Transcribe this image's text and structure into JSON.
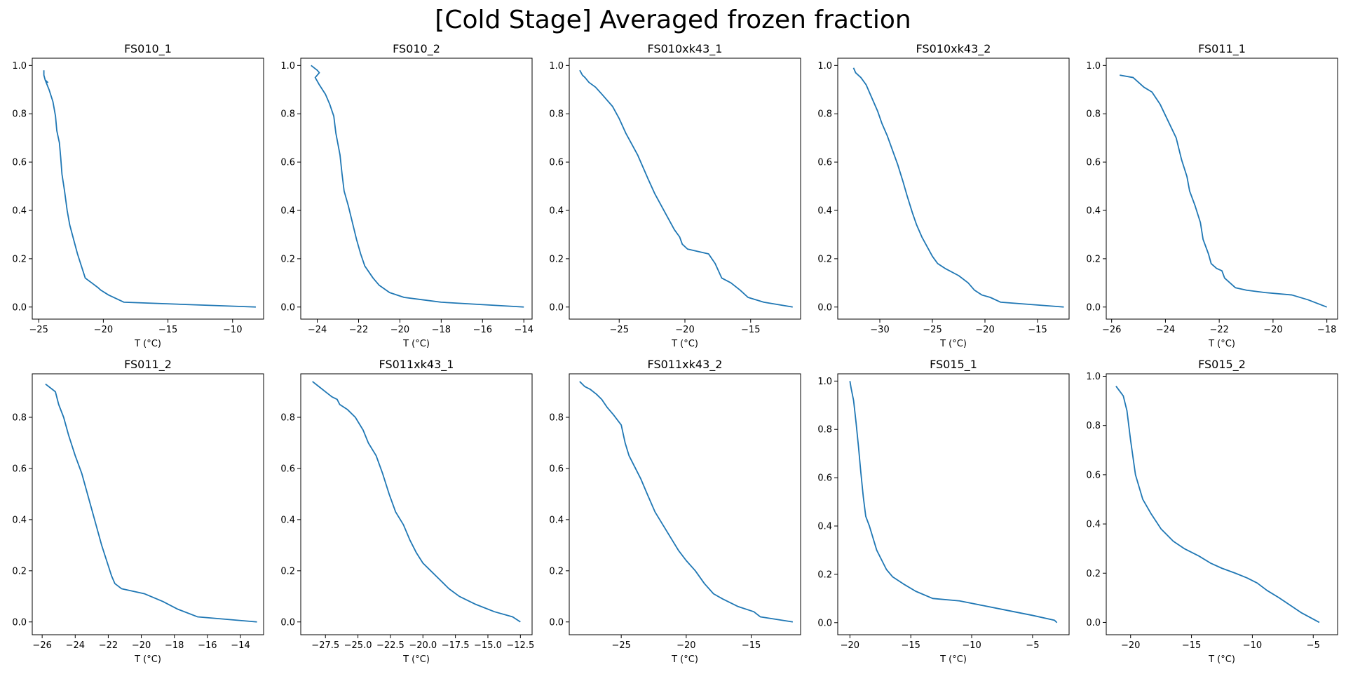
{
  "title": "[Cold Stage] Averaged frozen fraction",
  "colors": {
    "line": "#1f77b4",
    "axes": "#000000",
    "text": "#000000"
  },
  "chart_data": [
    {
      "type": "line",
      "title": "FS010_1",
      "xlabel": "T (°C)",
      "ylabel": "",
      "xlim": [
        -25.5,
        -7.6
      ],
      "ylim": [
        -0.05,
        1.03
      ],
      "xticks": [
        -25,
        -20,
        -15,
        -10
      ],
      "yticks": [
        0.0,
        0.2,
        0.4,
        0.6,
        0.8,
        1.0
      ],
      "x": [
        -24.6,
        -24.6,
        -24.5,
        -24.3,
        -24.5,
        -24.2,
        -23.9,
        -23.7,
        -23.6,
        -23.4,
        -23.3,
        -23.2,
        -23.0,
        -22.8,
        -22.6,
        -22.3,
        -22.0,
        -21.7,
        -21.4,
        -20.9,
        -20.4,
        -20.2,
        -19.6,
        -18.4,
        -8.2
      ],
      "y": [
        0.98,
        0.96,
        0.94,
        0.93,
        0.94,
        0.9,
        0.85,
        0.79,
        0.73,
        0.68,
        0.62,
        0.55,
        0.48,
        0.4,
        0.34,
        0.28,
        0.22,
        0.17,
        0.12,
        0.1,
        0.08,
        0.07,
        0.05,
        0.02,
        0.0
      ]
    },
    {
      "type": "line",
      "title": "FS010_2",
      "xlabel": "T (°C)",
      "ylabel": "",
      "xlim": [
        -24.8,
        -13.6
      ],
      "ylim": [
        -0.05,
        1.03
      ],
      "xticks": [
        -24,
        -22,
        -20,
        -18,
        -16,
        -14
      ],
      "yticks": [
        0.0,
        0.2,
        0.4,
        0.6,
        0.8,
        1.0
      ],
      "x": [
        -24.3,
        -24.0,
        -23.9,
        -24.1,
        -23.9,
        -23.6,
        -23.4,
        -23.2,
        -23.1,
        -22.9,
        -22.8,
        -22.7,
        -22.5,
        -22.3,
        -22.1,
        -21.9,
        -21.7,
        -21.3,
        -21.0,
        -20.5,
        -19.8,
        -18.9,
        -18.0,
        -14.0
      ],
      "y": [
        1.0,
        0.98,
        0.97,
        0.95,
        0.92,
        0.88,
        0.84,
        0.79,
        0.72,
        0.63,
        0.55,
        0.48,
        0.42,
        0.35,
        0.28,
        0.22,
        0.17,
        0.12,
        0.09,
        0.06,
        0.04,
        0.03,
        0.02,
        0.0
      ]
    },
    {
      "type": "line",
      "title": "FS010xk43_1",
      "xlabel": "T (°C)",
      "ylabel": "",
      "xlim": [
        -28.8,
        -11.2
      ],
      "ylim": [
        -0.05,
        1.03
      ],
      "xticks": [
        -25,
        -20,
        -15
      ],
      "yticks": [
        0.0,
        0.2,
        0.4,
        0.6,
        0.8,
        1.0
      ],
      "x": [
        -28.0,
        -27.8,
        -27.6,
        -27.3,
        -26.8,
        -26.3,
        -25.5,
        -25.0,
        -24.5,
        -24.1,
        -23.6,
        -23.2,
        -22.8,
        -22.3,
        -21.9,
        -21.4,
        -21.0,
        -20.8,
        -20.4,
        -20.2,
        -19.8,
        -18.2,
        -17.7,
        -17.2,
        -16.5,
        -15.8,
        -15.2,
        -14.0,
        -11.8
      ],
      "y": [
        0.98,
        0.96,
        0.95,
        0.93,
        0.91,
        0.88,
        0.83,
        0.78,
        0.72,
        0.68,
        0.63,
        0.58,
        0.53,
        0.47,
        0.43,
        0.38,
        0.34,
        0.32,
        0.29,
        0.26,
        0.24,
        0.22,
        0.18,
        0.12,
        0.1,
        0.07,
        0.04,
        0.02,
        0.0
      ]
    },
    {
      "type": "line",
      "title": "FS010xk43_2",
      "xlabel": "T (°C)",
      "ylabel": "",
      "xlim": [
        -34.0,
        -12.0
      ],
      "ylim": [
        -0.05,
        1.03
      ],
      "xticks": [
        -30,
        -25,
        -20,
        -15
      ],
      "yticks": [
        0.0,
        0.2,
        0.4,
        0.6,
        0.8,
        1.0
      ],
      "x": [
        -32.5,
        -32.3,
        -31.8,
        -31.3,
        -31.0,
        -30.6,
        -30.2,
        -29.8,
        -29.3,
        -28.8,
        -28.3,
        -27.8,
        -27.4,
        -26.9,
        -26.5,
        -26.0,
        -25.5,
        -25.0,
        -24.5,
        -23.8,
        -22.5,
        -21.6,
        -21.0,
        -20.3,
        -19.5,
        -18.5,
        -12.5
      ],
      "y": [
        0.99,
        0.97,
        0.95,
        0.92,
        0.89,
        0.85,
        0.81,
        0.76,
        0.71,
        0.65,
        0.59,
        0.52,
        0.46,
        0.39,
        0.34,
        0.29,
        0.25,
        0.21,
        0.18,
        0.16,
        0.13,
        0.1,
        0.07,
        0.05,
        0.04,
        0.02,
        0.0
      ]
    },
    {
      "type": "line",
      "title": "FS011_1",
      "xlabel": "T (°C)",
      "ylabel": "",
      "xlim": [
        -26.2,
        -17.6
      ],
      "ylim": [
        -0.05,
        1.03
      ],
      "xticks": [
        -26,
        -24,
        -22,
        -20,
        -18
      ],
      "yticks": [
        0.0,
        0.2,
        0.4,
        0.6,
        0.8,
        1.0
      ],
      "x": [
        -25.7,
        -25.2,
        -25.0,
        -24.8,
        -24.5,
        -24.2,
        -23.9,
        -23.6,
        -23.4,
        -23.2,
        -23.1,
        -22.9,
        -22.7,
        -22.6,
        -22.4,
        -22.3,
        -22.1,
        -21.9,
        -21.8,
        -21.6,
        -21.4,
        -21.0,
        -20.3,
        -19.3,
        -18.7,
        -18.0
      ],
      "y": [
        0.96,
        0.95,
        0.93,
        0.91,
        0.89,
        0.84,
        0.77,
        0.7,
        0.61,
        0.54,
        0.48,
        0.42,
        0.35,
        0.28,
        0.22,
        0.18,
        0.16,
        0.15,
        0.12,
        0.1,
        0.08,
        0.07,
        0.06,
        0.05,
        0.03,
        0.0
      ]
    },
    {
      "type": "line",
      "title": "FS011_2",
      "xlabel": "T (°C)",
      "ylabel": "",
      "xlim": [
        -26.6,
        -12.6
      ],
      "ylim": [
        -0.05,
        0.97
      ],
      "xticks": [
        -26,
        -24,
        -22,
        -20,
        -18,
        -16,
        -14
      ],
      "yticks": [
        0.0,
        0.2,
        0.4,
        0.6,
        0.8
      ],
      "x": [
        -25.8,
        -25.4,
        -25.2,
        -25.0,
        -24.7,
        -24.4,
        -24.0,
        -23.6,
        -23.3,
        -23.0,
        -22.7,
        -22.4,
        -22.1,
        -21.8,
        -21.6,
        -21.2,
        -20.5,
        -19.8,
        -18.7,
        -17.8,
        -16.6,
        -13.0
      ],
      "y": [
        0.93,
        0.91,
        0.9,
        0.85,
        0.8,
        0.73,
        0.65,
        0.58,
        0.51,
        0.44,
        0.37,
        0.3,
        0.24,
        0.18,
        0.15,
        0.13,
        0.12,
        0.11,
        0.08,
        0.05,
        0.02,
        0.0
      ]
    },
    {
      "type": "line",
      "title": "FS011xk43_1",
      "xlabel": "T (°C)",
      "ylabel": "",
      "xlim": [
        -29.4,
        -11.6
      ],
      "ylim": [
        -0.05,
        0.97
      ],
      "xticks": [
        -27.5,
        -25.0,
        -22.5,
        -20.0,
        -17.5,
        -15.0,
        -12.5
      ],
      "yticks": [
        0.0,
        0.2,
        0.4,
        0.6,
        0.8
      ],
      "x": [
        -28.5,
        -28.0,
        -27.5,
        -27.0,
        -26.6,
        -26.4,
        -25.8,
        -25.2,
        -24.6,
        -24.2,
        -23.6,
        -23.1,
        -22.6,
        -22.1,
        -21.5,
        -21.0,
        -20.5,
        -20.0,
        -19.4,
        -18.8,
        -18.0,
        -17.2,
        -16.0,
        -14.5,
        -13.1,
        -12.5
      ],
      "y": [
        0.94,
        0.92,
        0.9,
        0.88,
        0.87,
        0.85,
        0.83,
        0.8,
        0.75,
        0.7,
        0.65,
        0.58,
        0.5,
        0.43,
        0.38,
        0.32,
        0.27,
        0.23,
        0.2,
        0.17,
        0.13,
        0.1,
        0.07,
        0.04,
        0.02,
        0.0
      ]
    },
    {
      "type": "line",
      "title": "FS011xk43_2",
      "xlabel": "T (°C)",
      "ylabel": "",
      "xlim": [
        -29.0,
        -11.2
      ],
      "ylim": [
        -0.05,
        0.97
      ],
      "xticks": [
        -25,
        -20,
        -15
      ],
      "yticks": [
        0.0,
        0.2,
        0.4,
        0.6,
        0.8
      ],
      "x": [
        -28.2,
        -27.8,
        -27.4,
        -26.9,
        -26.5,
        -26.1,
        -25.6,
        -25.0,
        -24.7,
        -24.4,
        -24.0,
        -23.5,
        -23.0,
        -22.4,
        -21.8,
        -21.2,
        -20.6,
        -20.0,
        -19.3,
        -18.6,
        -17.9,
        -17.2,
        -16.0,
        -14.8,
        -14.3,
        -11.8
      ],
      "y": [
        0.94,
        0.92,
        0.91,
        0.89,
        0.87,
        0.84,
        0.81,
        0.77,
        0.7,
        0.65,
        0.61,
        0.56,
        0.5,
        0.43,
        0.38,
        0.33,
        0.28,
        0.24,
        0.2,
        0.15,
        0.11,
        0.09,
        0.06,
        0.04,
        0.02,
        0.0
      ]
    },
    {
      "type": "line",
      "title": "FS015_1",
      "xlabel": "T (°C)",
      "ylabel": "",
      "xlim": [
        -21.0,
        -2.0
      ],
      "ylim": [
        -0.05,
        1.03
      ],
      "xticks": [
        -20,
        -15,
        -10,
        -5
      ],
      "yticks": [
        0.0,
        0.2,
        0.4,
        0.6,
        0.8,
        1.0
      ],
      "x": [
        -20.0,
        -19.9,
        -19.7,
        -19.5,
        -19.3,
        -19.1,
        -18.9,
        -18.7,
        -18.4,
        -18.1,
        -17.8,
        -17.4,
        -17.0,
        -16.5,
        -15.6,
        -14.6,
        -13.2,
        -11.0,
        -9.0,
        -7.0,
        -5.0,
        -3.2,
        -3.0
      ],
      "y": [
        1.0,
        0.97,
        0.92,
        0.83,
        0.73,
        0.62,
        0.52,
        0.44,
        0.4,
        0.35,
        0.3,
        0.26,
        0.22,
        0.19,
        0.16,
        0.13,
        0.1,
        0.09,
        0.07,
        0.05,
        0.03,
        0.01,
        0.0
      ]
    },
    {
      "type": "line",
      "title": "FS015_2",
      "xlabel": "T (°C)",
      "ylabel": "",
      "xlim": [
        -22.0,
        -3.0
      ],
      "ylim": [
        -0.05,
        1.01
      ],
      "xticks": [
        -20,
        -15,
        -10,
        -5
      ],
      "yticks": [
        0.0,
        0.2,
        0.4,
        0.6,
        0.8,
        1.0
      ],
      "x": [
        -21.2,
        -20.9,
        -20.6,
        -20.3,
        -20.0,
        -19.6,
        -19.0,
        -18.3,
        -17.5,
        -16.5,
        -15.6,
        -14.4,
        -13.4,
        -12.5,
        -11.4,
        -10.4,
        -9.6,
        -8.8,
        -7.8,
        -6.9,
        -6.0,
        -4.5
      ],
      "y": [
        0.96,
        0.94,
        0.92,
        0.86,
        0.74,
        0.6,
        0.5,
        0.44,
        0.38,
        0.33,
        0.3,
        0.27,
        0.24,
        0.22,
        0.2,
        0.18,
        0.16,
        0.13,
        0.1,
        0.07,
        0.04,
        0.0
      ]
    }
  ]
}
